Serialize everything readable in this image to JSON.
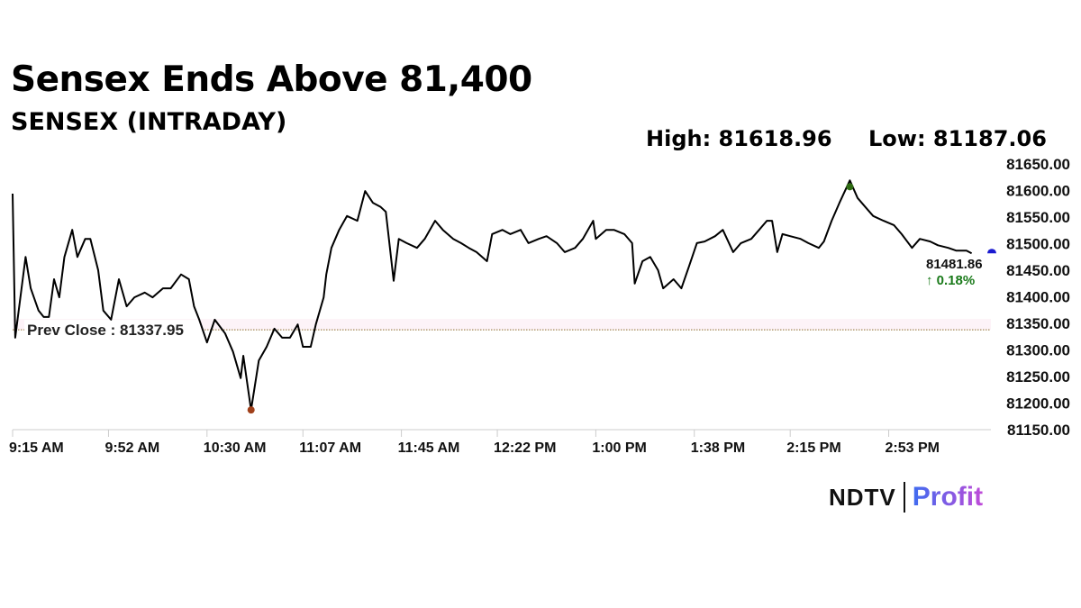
{
  "chart_data": {
    "type": "line",
    "title": "Sensex Ends Above 81,400",
    "subtitle": "SENSEX (INTRADAY)",
    "high_label": "High: 81618.96",
    "low_label": "Low: 81187.06",
    "high": 81618.96,
    "low": 81187.06,
    "prev_close": 81337.95,
    "prev_close_label": "Prev Close : 81337.95",
    "last_value_label": "81481.86",
    "change_label": "↑ 0.18%",
    "ylim": [
      81150,
      81650
    ],
    "y_ticks": [
      "81150.00",
      "81200.00",
      "81250.00",
      "81300.00",
      "81350.00",
      "81400.00",
      "81450.00",
      "81500.00",
      "81550.00",
      "81600.00",
      "81650.00"
    ],
    "x_ticks": [
      "9:15 AM",
      "9:52 AM",
      "10:30 AM",
      "11:07 AM",
      "11:45 AM",
      "12:22 PM",
      "1:00 PM",
      "1:38 PM",
      "2:15 PM",
      "2:53 PM"
    ],
    "xlim": [
      "09:15",
      "15:30"
    ],
    "grid": false,
    "colors": {
      "line": "#000000",
      "prev_close": "#8b6a2b",
      "high_marker": "#2e6b12",
      "low_marker": "#a0401a",
      "last_marker": "#1a1ad0",
      "change": "#1a7a1a"
    },
    "series": [
      {
        "x": [
          "09:15",
          "09:16",
          "09:20",
          "09:22",
          "09:25",
          "09:27",
          "09:29",
          "09:31",
          "09:33",
          "09:35",
          "09:38",
          "09:40",
          "09:43",
          "09:45",
          "09:48",
          "09:50",
          "09:53",
          "09:56",
          "09:59",
          "10:02",
          "10:06",
          "10:09",
          "10:13",
          "10:16",
          "10:20",
          "10:23",
          "10:25",
          "10:27",
          "10:30",
          "10:33",
          "10:37",
          "10:40",
          "10:43",
          "10:44",
          "10:47",
          "10:50",
          "10:53",
          "10:56",
          "10:59",
          "11:02",
          "11:05",
          "11:07",
          "11:10",
          "11:12",
          "11:15",
          "11:16",
          "11:18",
          "11:21",
          "11:24",
          "11:28",
          "11:31",
          "11:34",
          "11:37",
          "11:39",
          "11:42",
          "11:44",
          "11:47",
          "11:51",
          "11:54",
          "11:58",
          "12:01",
          "12:05",
          "12:08",
          "12:11",
          "12:14",
          "12:18",
          "12:20",
          "12:24",
          "12:27",
          "12:31",
          "12:34",
          "12:38",
          "12:41",
          "12:45",
          "12:48",
          "12:52",
          "12:55",
          "12:59",
          "13:00",
          "13:04",
          "13:07",
          "13:11",
          "13:14",
          "13:15",
          "13:18",
          "13:21",
          "13:24",
          "13:26",
          "13:30",
          "13:33",
          "13:36",
          "13:39",
          "13:42",
          "13:46",
          "13:49",
          "13:53",
          "13:56",
          "14:00",
          "14:03",
          "14:06",
          "14:08",
          "14:10",
          "14:12",
          "14:15",
          "14:19",
          "14:22",
          "14:26",
          "14:28",
          "14:31",
          "14:34",
          "14:38",
          "14:41",
          "14:44",
          "14:47",
          "14:51",
          "14:55",
          "14:58",
          "15:02",
          "15:05",
          "15:09",
          "15:12",
          "15:16",
          "15:19",
          "15:23",
          "15:25"
        ],
        "values": [
          81594,
          81323,
          81475,
          81416,
          81374,
          81362,
          81362,
          81433,
          81399,
          81475,
          81526,
          81475,
          81509,
          81509,
          81450,
          81374,
          81357,
          81433,
          81382,
          81399,
          81408,
          81399,
          81416,
          81416,
          81442,
          81433,
          81382,
          81357,
          81314,
          81357,
          81331,
          81297,
          81247,
          81289,
          81187.06,
          81280,
          81306,
          81340,
          81323,
          81323,
          81348,
          81306,
          81306,
          81348,
          81399,
          81442,
          81492,
          81526,
          81552,
          81543,
          81599,
          81577,
          81569,
          81560,
          81430,
          81509,
          81501,
          81492,
          81509,
          81543,
          81526,
          81509,
          81501,
          81492,
          81484,
          81467,
          81518,
          81526,
          81518,
          81526,
          81501,
          81509,
          81514,
          81501,
          81484,
          81492,
          81509,
          81543,
          81509,
          81526,
          81526,
          81518,
          81501,
          81425,
          81467,
          81475,
          81450,
          81416,
          81433,
          81416,
          81458,
          81501,
          81504,
          81514,
          81526,
          81484,
          81501,
          81509,
          81526,
          81543,
          81543,
          81484,
          81518,
          81514,
          81509,
          81501,
          81492,
          81504,
          81543,
          81577,
          81618.96,
          81586,
          81569,
          81552,
          81543,
          81535,
          81518,
          81492,
          81509,
          81504,
          81497,
          81492,
          81487,
          81487,
          81481.86
        ]
      }
    ]
  },
  "logo": {
    "left": "NDTV",
    "right": "Profit"
  }
}
